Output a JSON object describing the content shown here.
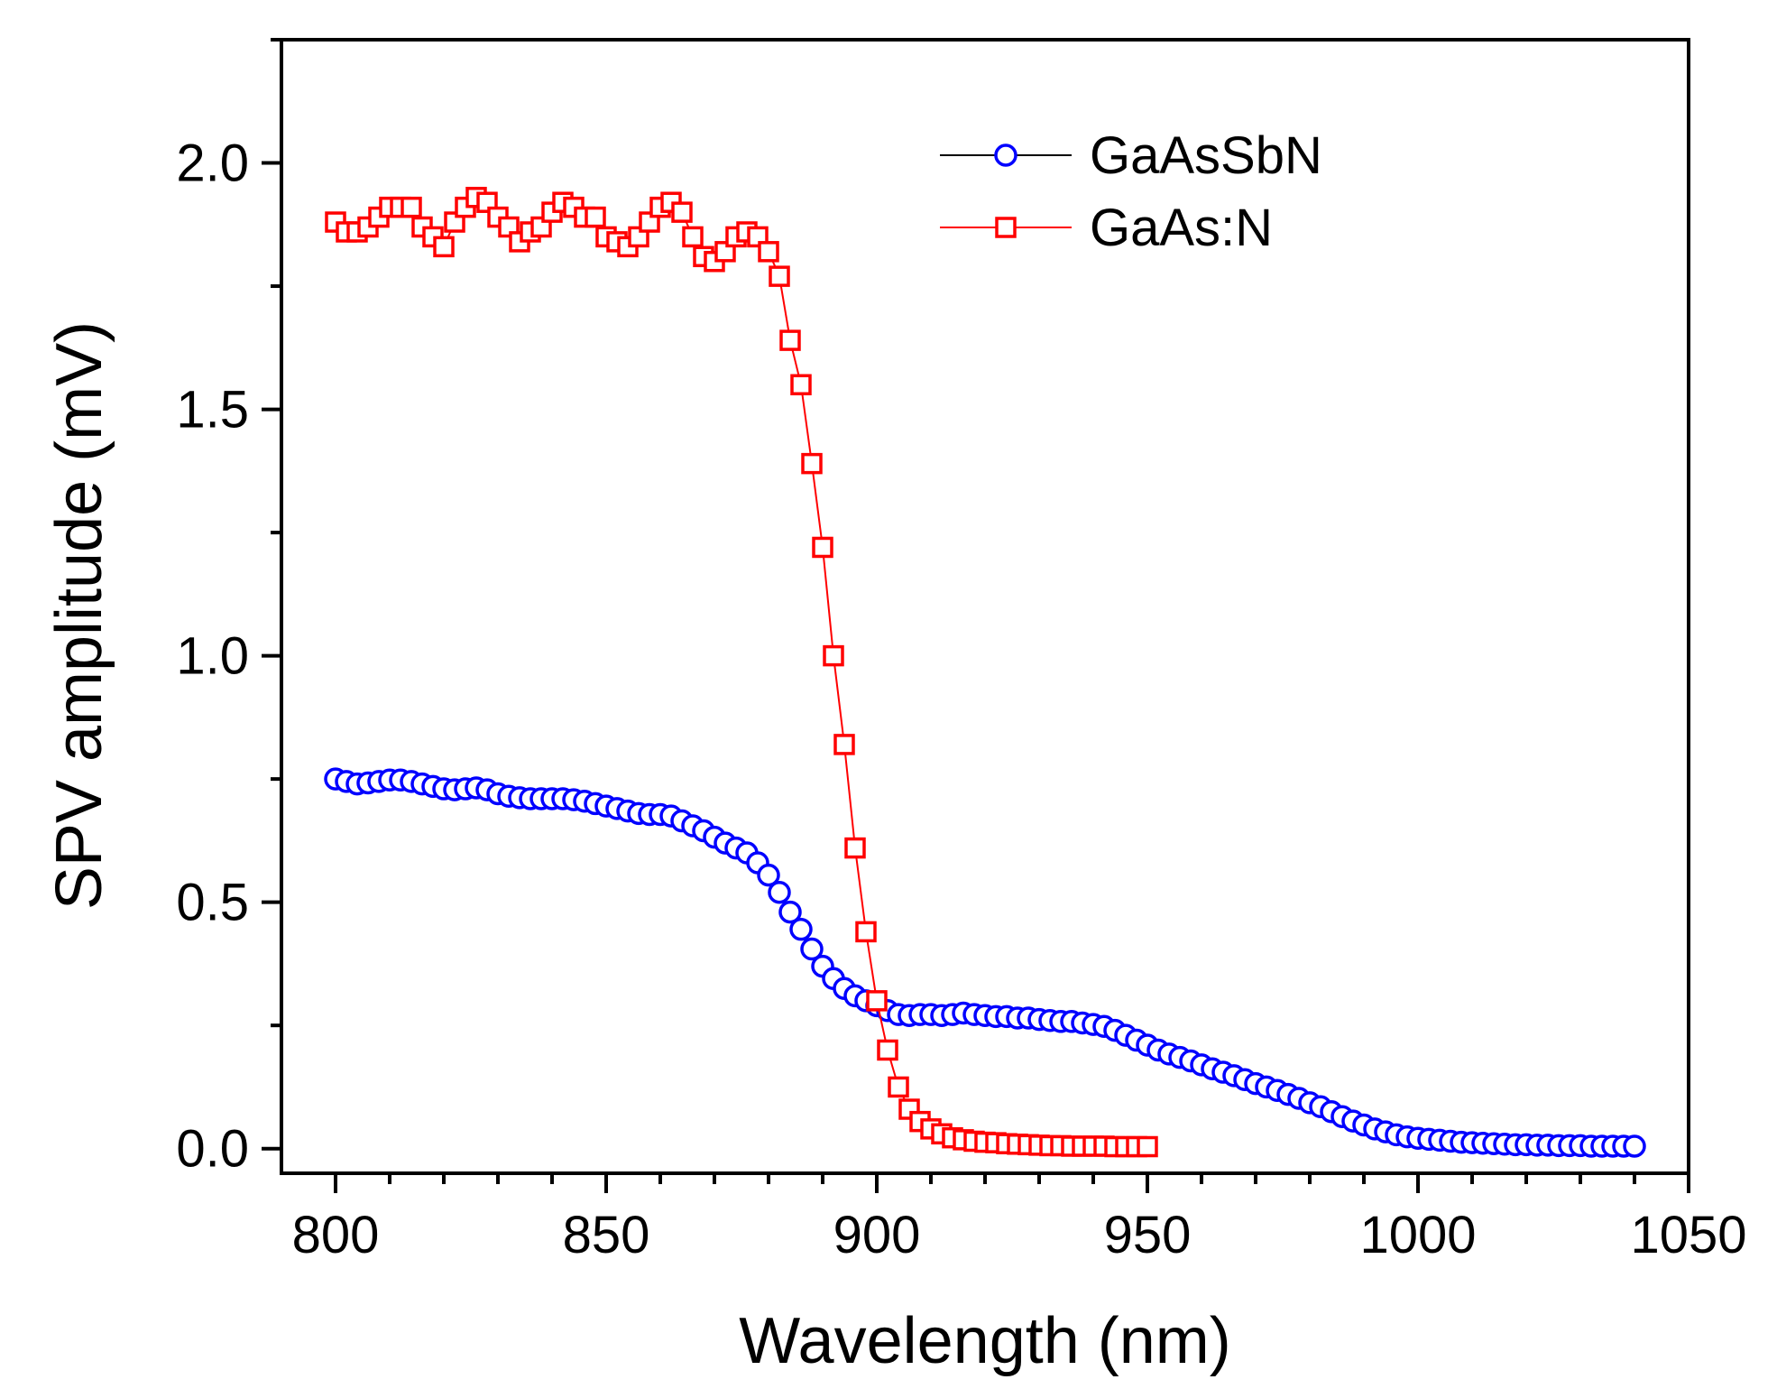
{
  "chart_data": {
    "type": "scatter",
    "title": "",
    "xlabel": "Wavelength (nm)",
    "ylabel": "SPV amplitude (mV)",
    "xlim": [
      790,
      1050
    ],
    "ylim": [
      -0.05,
      2.25
    ],
    "xticks": [
      800,
      850,
      900,
      950,
      1000,
      1050
    ],
    "xtick_labels": [
      "800",
      "850",
      "900",
      "950",
      "1000",
      "1050"
    ],
    "yticks": [
      0.0,
      0.5,
      1.0,
      1.5,
      2.0
    ],
    "ytick_labels": [
      "0.0",
      "0.5",
      "1.0",
      "1.5",
      "2.0"
    ],
    "legend_position": "top-right",
    "series": [
      {
        "name": "GaAsSbN",
        "marker": "circle",
        "color": "#0000ff",
        "line_color": "#000000",
        "x": [
          800,
          802,
          804,
          806,
          808,
          810,
          812,
          814,
          816,
          818,
          820,
          822,
          824,
          826,
          828,
          830,
          832,
          834,
          836,
          838,
          840,
          842,
          844,
          846,
          848,
          850,
          852,
          854,
          856,
          858,
          860,
          862,
          864,
          866,
          868,
          870,
          872,
          874,
          876,
          878,
          880,
          882,
          884,
          886,
          888,
          890,
          892,
          894,
          896,
          898,
          900,
          902,
          904,
          906,
          908,
          910,
          912,
          914,
          916,
          918,
          920,
          922,
          924,
          926,
          928,
          930,
          932,
          934,
          936,
          938,
          940,
          942,
          944,
          946,
          948,
          950,
          952,
          954,
          956,
          958,
          960,
          962,
          964,
          966,
          968,
          970,
          972,
          974,
          976,
          978,
          980,
          982,
          984,
          986,
          988,
          990,
          992,
          994,
          996,
          998,
          1000,
          1002,
          1004,
          1006,
          1008,
          1010,
          1012,
          1014,
          1016,
          1018,
          1020,
          1022,
          1024,
          1026,
          1028,
          1030,
          1032,
          1034,
          1036,
          1038,
          1040
        ],
        "values": [
          0.75,
          0.745,
          0.74,
          0.742,
          0.745,
          0.748,
          0.748,
          0.745,
          0.74,
          0.735,
          0.73,
          0.728,
          0.73,
          0.732,
          0.728,
          0.72,
          0.715,
          0.712,
          0.71,
          0.71,
          0.71,
          0.71,
          0.708,
          0.705,
          0.7,
          0.695,
          0.69,
          0.685,
          0.68,
          0.678,
          0.678,
          0.675,
          0.665,
          0.655,
          0.645,
          0.632,
          0.62,
          0.61,
          0.6,
          0.58,
          0.555,
          0.52,
          0.48,
          0.445,
          0.405,
          0.37,
          0.345,
          0.325,
          0.31,
          0.3,
          0.29,
          0.28,
          0.272,
          0.27,
          0.272,
          0.272,
          0.27,
          0.272,
          0.275,
          0.272,
          0.27,
          0.268,
          0.268,
          0.265,
          0.265,
          0.262,
          0.26,
          0.258,
          0.258,
          0.255,
          0.252,
          0.248,
          0.24,
          0.23,
          0.22,
          0.21,
          0.2,
          0.192,
          0.185,
          0.178,
          0.17,
          0.162,
          0.155,
          0.148,
          0.14,
          0.132,
          0.125,
          0.118,
          0.11,
          0.102,
          0.093,
          0.085,
          0.075,
          0.065,
          0.056,
          0.048,
          0.04,
          0.034,
          0.028,
          0.024,
          0.021,
          0.019,
          0.017,
          0.015,
          0.013,
          0.012,
          0.011,
          0.01,
          0.009,
          0.008,
          0.008,
          0.007,
          0.007,
          0.006,
          0.006,
          0.006,
          0.005,
          0.005,
          0.005,
          0.005,
          0.005
        ]
      },
      {
        "name": "GaAs:N",
        "marker": "square",
        "color": "#ff0000",
        "line_color": "#ff0000",
        "x": [
          800,
          802,
          804,
          806,
          808,
          810,
          812,
          814,
          816,
          818,
          820,
          822,
          824,
          826,
          828,
          830,
          832,
          834,
          836,
          838,
          840,
          842,
          844,
          846,
          848,
          850,
          852,
          854,
          856,
          858,
          860,
          862,
          864,
          866,
          868,
          870,
          872,
          874,
          876,
          878,
          880,
          882,
          884,
          886,
          888,
          890,
          892,
          894,
          896,
          898,
          900,
          902,
          904,
          906,
          908,
          910,
          912,
          914,
          916,
          918,
          920,
          922,
          924,
          926,
          928,
          930,
          932,
          934,
          936,
          938,
          940,
          942,
          944,
          946,
          948,
          950
        ],
        "values": [
          1.88,
          1.86,
          1.86,
          1.87,
          1.89,
          1.91,
          1.91,
          1.91,
          1.87,
          1.85,
          1.83,
          1.88,
          1.91,
          1.93,
          1.92,
          1.89,
          1.87,
          1.84,
          1.86,
          1.87,
          1.9,
          1.92,
          1.91,
          1.89,
          1.89,
          1.85,
          1.84,
          1.83,
          1.85,
          1.88,
          1.91,
          1.92,
          1.9,
          1.85,
          1.81,
          1.8,
          1.82,
          1.85,
          1.86,
          1.85,
          1.82,
          1.77,
          1.64,
          1.55,
          1.39,
          1.22,
          1.0,
          0.82,
          0.61,
          0.44,
          0.3,
          0.2,
          0.125,
          0.08,
          0.055,
          0.04,
          0.03,
          0.022,
          0.018,
          0.015,
          0.013,
          0.012,
          0.01,
          0.009,
          0.008,
          0.007,
          0.006,
          0.006,
          0.005,
          0.005,
          0.005,
          0.005,
          0.004,
          0.004,
          0.004,
          0.004
        ]
      }
    ]
  }
}
